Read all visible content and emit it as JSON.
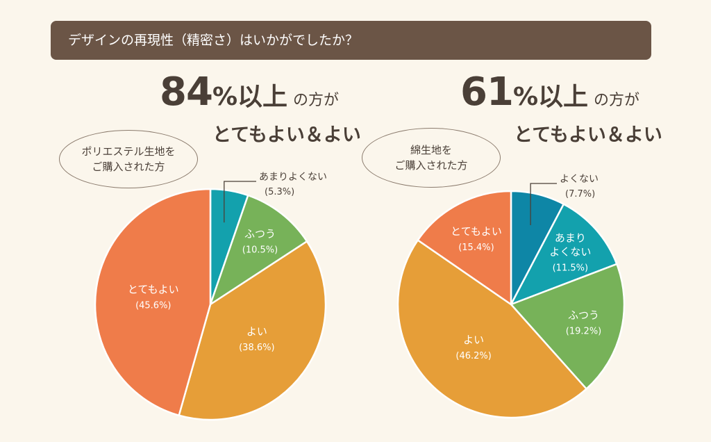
{
  "banner": {
    "title": "デザインの再現性（精密さ）はいかがでしたか？"
  },
  "left_panel": {
    "headline_number": "84",
    "headline_pct": "%以上",
    "headline_suffix": "の方が",
    "subline": "とてもよい＆よい",
    "oval_line1": "ポリエステル生地を",
    "oval_line2": "ご購入された方"
  },
  "right_panel": {
    "headline_number": "61",
    "headline_pct": "%以上",
    "headline_suffix": "の方が",
    "subline": "とてもよい＆よい",
    "oval_line1": "綿生地を",
    "oval_line2": "ご購入された方"
  },
  "chart_data": [
    {
      "type": "pie",
      "slices": [
        {
          "label": "あまりよくない",
          "value": 5.3,
          "value_label": "(5.3%)",
          "color": "#13a1ad"
        },
        {
          "label": "ふつう",
          "value": 10.5,
          "value_label": "(10.5%)",
          "color": "#77b259"
        },
        {
          "label": "よい",
          "value": 38.6,
          "value_label": "(38.6%)",
          "color": "#e69e38"
        },
        {
          "label": "とてもよい",
          "value": 45.6,
          "value_label": "(45.6%)",
          "color": "#ef7c4a"
        }
      ]
    },
    {
      "type": "pie",
      "slices": [
        {
          "label": "よくない",
          "value": 7.7,
          "value_label": "(7.7%)",
          "color": "#0e86a6"
        },
        {
          "label": "あまりよくない",
          "value": 11.5,
          "value_label": "(11.5%)",
          "color": "#13a1ad",
          "label_lines": [
            "あまり",
            "よくない"
          ]
        },
        {
          "label": "ふつう",
          "value": 19.2,
          "value_label": "(19.2%)",
          "color": "#77b259"
        },
        {
          "label": "よい",
          "value": 46.2,
          "value_label": "(46.2%)",
          "color": "#e69e38"
        },
        {
          "label": "とてもよい",
          "value": 15.4,
          "value_label": "(15.4%)",
          "color": "#ef7c4a"
        }
      ]
    }
  ]
}
